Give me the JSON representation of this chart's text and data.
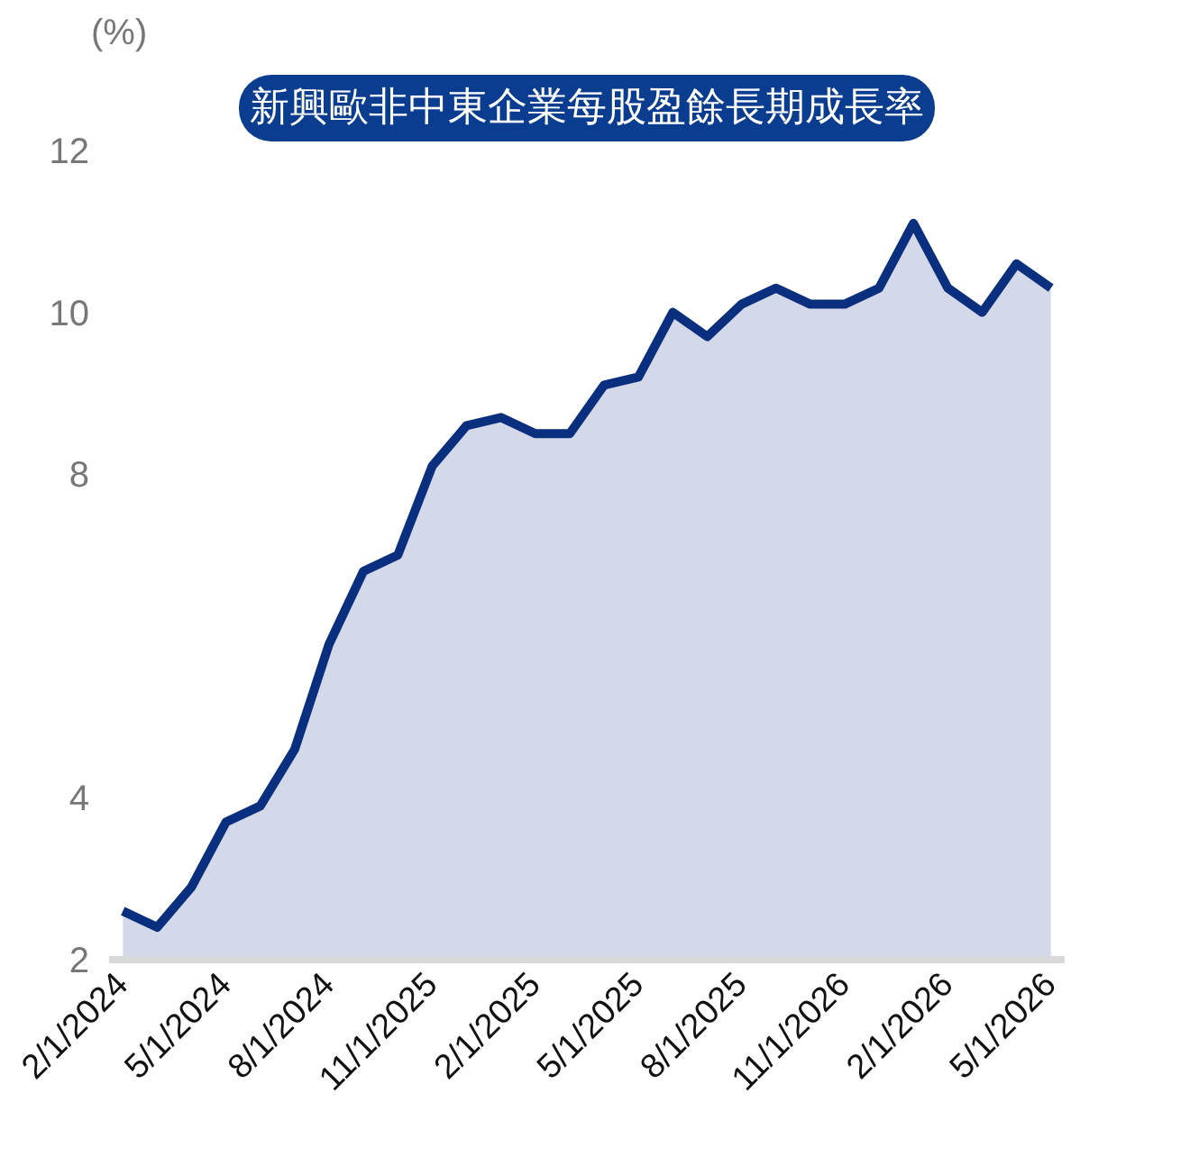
{
  "chart_data": {
    "type": "area",
    "title": "新興歐非中東企業每股盈餘長期成長率",
    "ylabel": "(%)",
    "categories": [
      "2/1/2024",
      null,
      null,
      "5/1/2024",
      null,
      null,
      "8/1/2024",
      null,
      null,
      "11/1/2025",
      null,
      null,
      "2/1/2025",
      null,
      null,
      "5/1/2025",
      null,
      null,
      "8/1/2025",
      null,
      null,
      "11/1/2026",
      null,
      null,
      "2/1/2026",
      null,
      null,
      "5/1/2026"
    ],
    "series": [
      {
        "color": "#0a2f7e",
        "values": [
          2.6,
          2.4,
          2.9,
          3.7,
          3.9,
          4.6,
          5.9,
          6.8,
          7.0,
          8.1,
          8.6,
          8.7,
          8.5,
          8.5,
          9.1,
          9.2,
          10.0,
          9.7,
          10.1,
          10.3,
          10.1,
          10.1,
          10.3,
          11.1,
          10.3,
          10.0,
          10.6,
          10.3
        ]
      }
    ],
    "ylim": [
      2,
      12
    ],
    "yticks": [
      2,
      4,
      8,
      10,
      12
    ],
    "grid": false
  }
}
